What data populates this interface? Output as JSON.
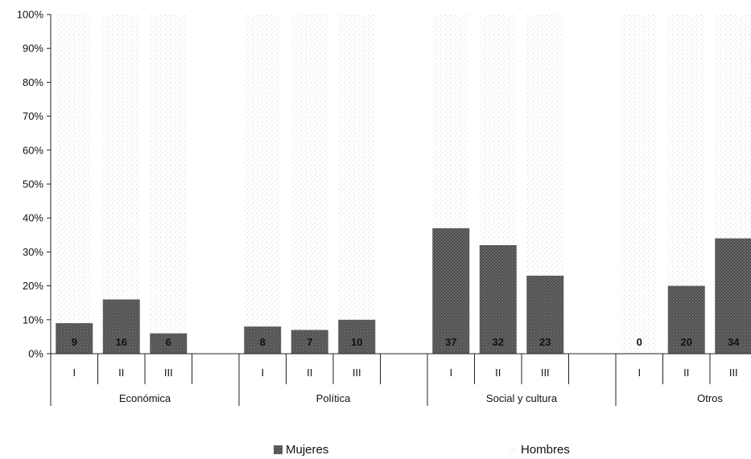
{
  "chart_data": {
    "type": "bar",
    "stacked_percent": true,
    "groups": [
      {
        "name": "Económica",
        "subcategories": [
          "I",
          "II",
          "III"
        ],
        "mujeres": [
          9,
          16,
          6
        ]
      },
      {
        "name": "Política",
        "subcategories": [
          "I",
          "II",
          "III"
        ],
        "mujeres": [
          8,
          7,
          10
        ]
      },
      {
        "name": "Social y cultura",
        "subcategories": [
          "I",
          "II",
          "III"
        ],
        "mujeres": [
          37,
          32,
          23
        ]
      },
      {
        "name": "Otros",
        "subcategories": [
          "I",
          "II",
          "III"
        ],
        "mujeres": [
          0,
          20,
          34
        ]
      }
    ],
    "series": [
      {
        "name": "Mujeres",
        "color": "#5a5a5a"
      },
      {
        "name": "Hombres",
        "color": "#f2f2f2"
      }
    ],
    "y_ticks": [
      "0%",
      "10%",
      "20%",
      "30%",
      "40%",
      "50%",
      "60%",
      "70%",
      "80%",
      "90%",
      "100%"
    ],
    "ylim": [
      0,
      100
    ],
    "legend_position": "bottom"
  }
}
